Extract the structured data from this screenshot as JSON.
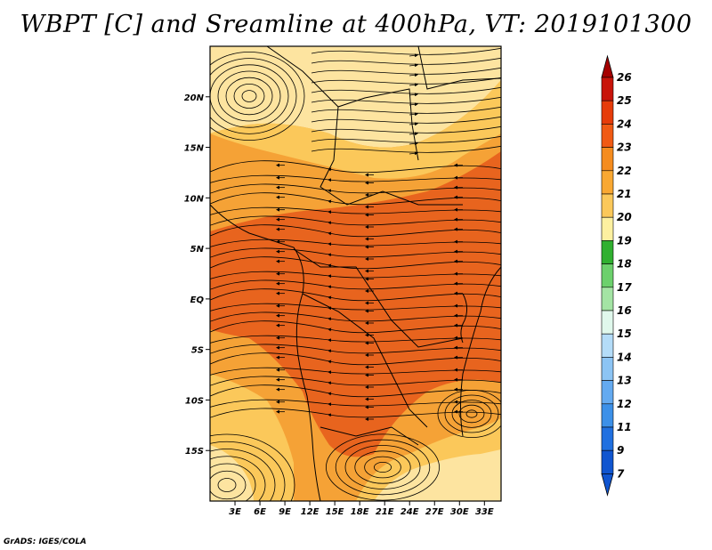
{
  "title": "WBPT [C] and Sreamline at 400hPa, VT: 2019101300",
  "credit": "GrADS: IGES/COLA",
  "map": {
    "lon_ticks": [
      "3E",
      "6E",
      "9E",
      "12E",
      "15E",
      "18E",
      "21E",
      "24E",
      "27E",
      "30E",
      "33E"
    ],
    "lat_ticks": [
      "20N",
      "15N",
      "10N",
      "5N",
      "EQ",
      "5S",
      "10S",
      "15S"
    ],
    "lon_range": [
      0,
      35
    ],
    "lat_range": [
      -20,
      25
    ]
  },
  "colorbar": {
    "levels": [
      "26",
      "25",
      "24",
      "23",
      "22",
      "21",
      "20",
      "19",
      "18",
      "17",
      "16",
      "15",
      "14",
      "13",
      "12",
      "11",
      "9",
      "7"
    ],
    "colors": [
      "#a50000",
      "#c8140a",
      "#e63c0a",
      "#f05a14",
      "#f58c1e",
      "#f9a832",
      "#fbc85a",
      "#fdf0a0",
      "#30b030",
      "#6cd06c",
      "#a4e4a4",
      "#e0f8ec",
      "#b4dcf8",
      "#8cc4f4",
      "#64aaf0",
      "#3c90e8",
      "#2070e0",
      "#1055d0"
    ]
  },
  "colors": {
    "hot": "#e8641e",
    "warm": "#f5a236",
    "mild": "#fbc85a",
    "cool": "#fde4a0"
  }
}
